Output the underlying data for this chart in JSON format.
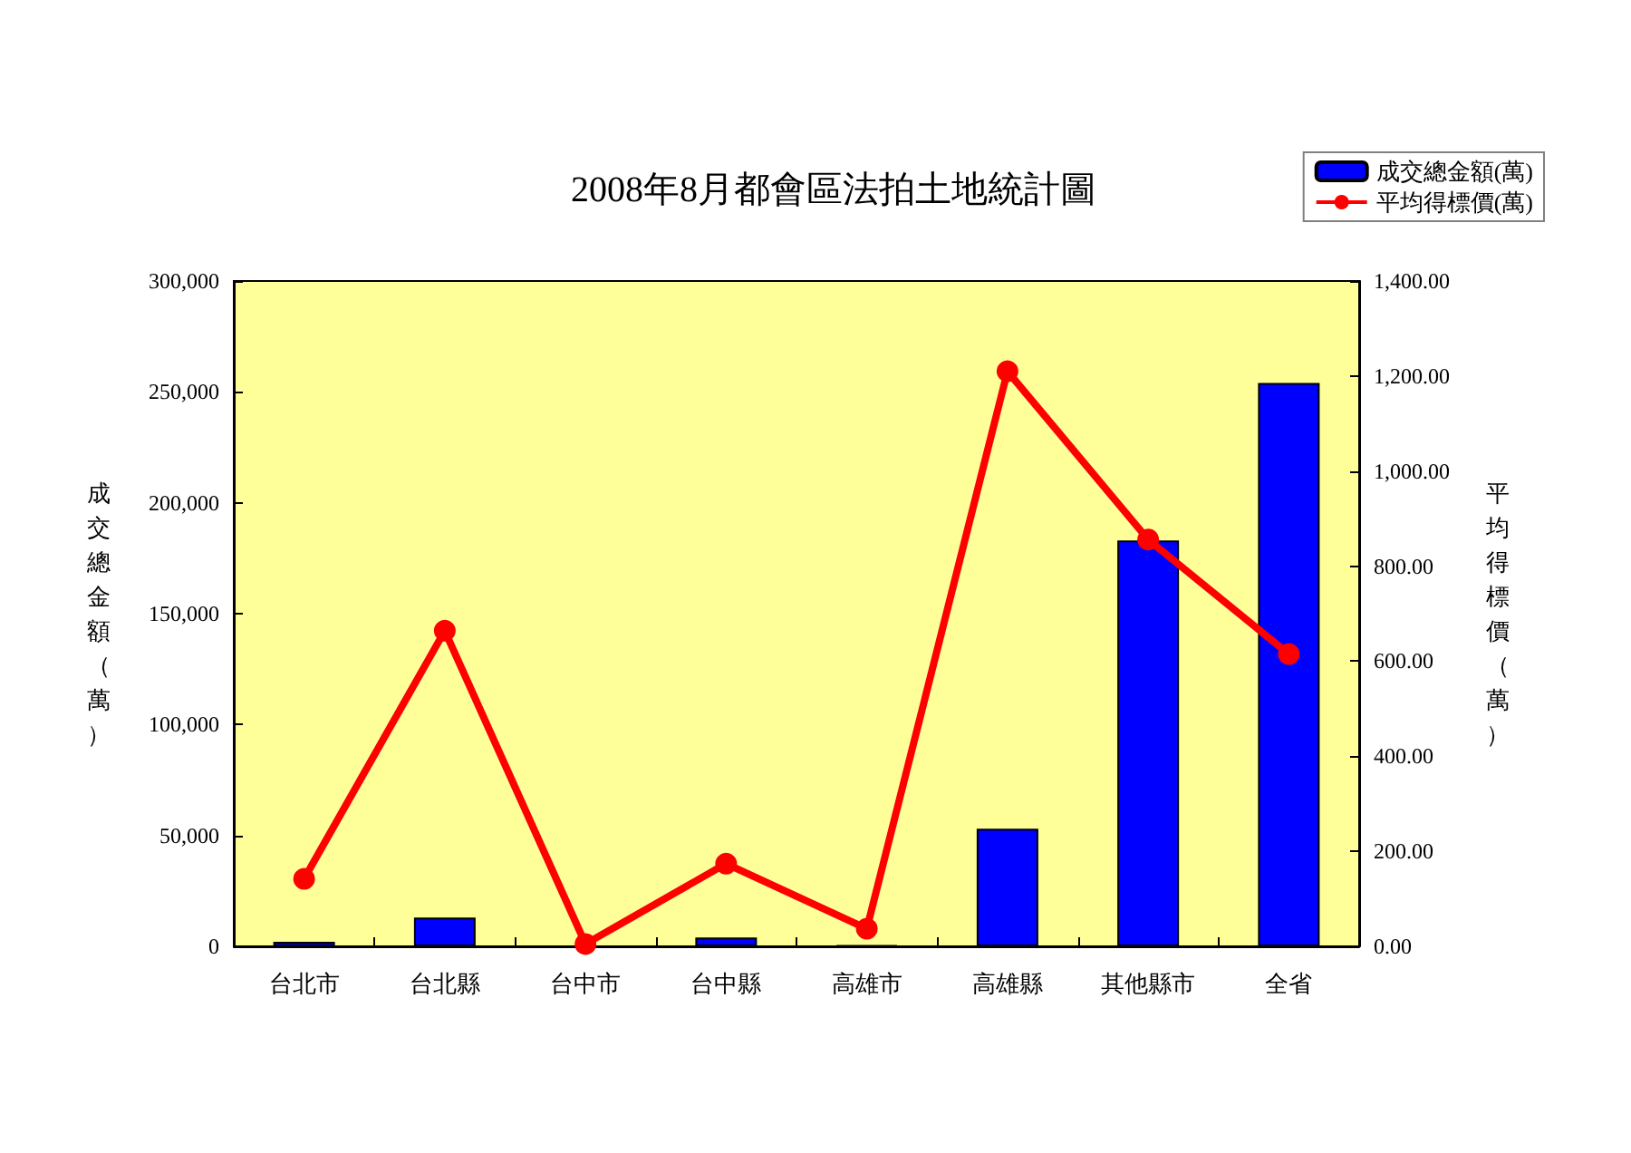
{
  "chart_data": {
    "type": "bar",
    "title": "2008年8月都會區法拍土地統計圖",
    "ylabel": "成交總金額（萬）",
    "y2label": "平均得標價（萬）",
    "categories": [
      "台北市",
      "台北縣",
      "台中市",
      "台中縣",
      "高雄市",
      "高雄縣",
      "其他縣市",
      "全省"
    ],
    "series": [
      {
        "name": "成交總金額(萬)",
        "color": "#0000ff",
        "values": [
          2000,
          13000,
          null,
          4000,
          500,
          53000,
          183000,
          254000
        ]
      },
      {
        "name": "平均得標價(萬)",
        "type": "line",
        "axis": "y2",
        "color": "#ff0000",
        "marker": "circle",
        "values": [
          142,
          664,
          5,
          174,
          37,
          1210,
          856,
          615
        ]
      }
    ],
    "ylim": [
      0,
      300000
    ],
    "yticks": [
      0,
      {
        "value": 50000,
        "label": "50,000"
      },
      {
        "value": 100000,
        "label": "100,000"
      },
      {
        "value": 150000,
        "label": "150,000"
      },
      {
        "value": 200000,
        "label": "200,000"
      },
      {
        "value": 250000,
        "label": "250,000"
      },
      {
        "value": 300000,
        "label": "300,000"
      }
    ],
    "y2lim": [
      0,
      1400
    ],
    "y2ticks": [
      {
        "value": 0,
        "label": "0.00"
      },
      {
        "value": 200,
        "label": "200.00"
      },
      {
        "value": 400,
        "label": "400.00"
      },
      {
        "value": 600,
        "label": "600.00"
      },
      {
        "value": 800,
        "label": "800.00"
      },
      {
        "value": 1000,
        "label": "1,000.00"
      },
      {
        "value": 1200,
        "label": "1,200.00"
      },
      {
        "value": 1400,
        "label": "1,400.00"
      }
    ],
    "grid": false,
    "legend": "top right"
  }
}
